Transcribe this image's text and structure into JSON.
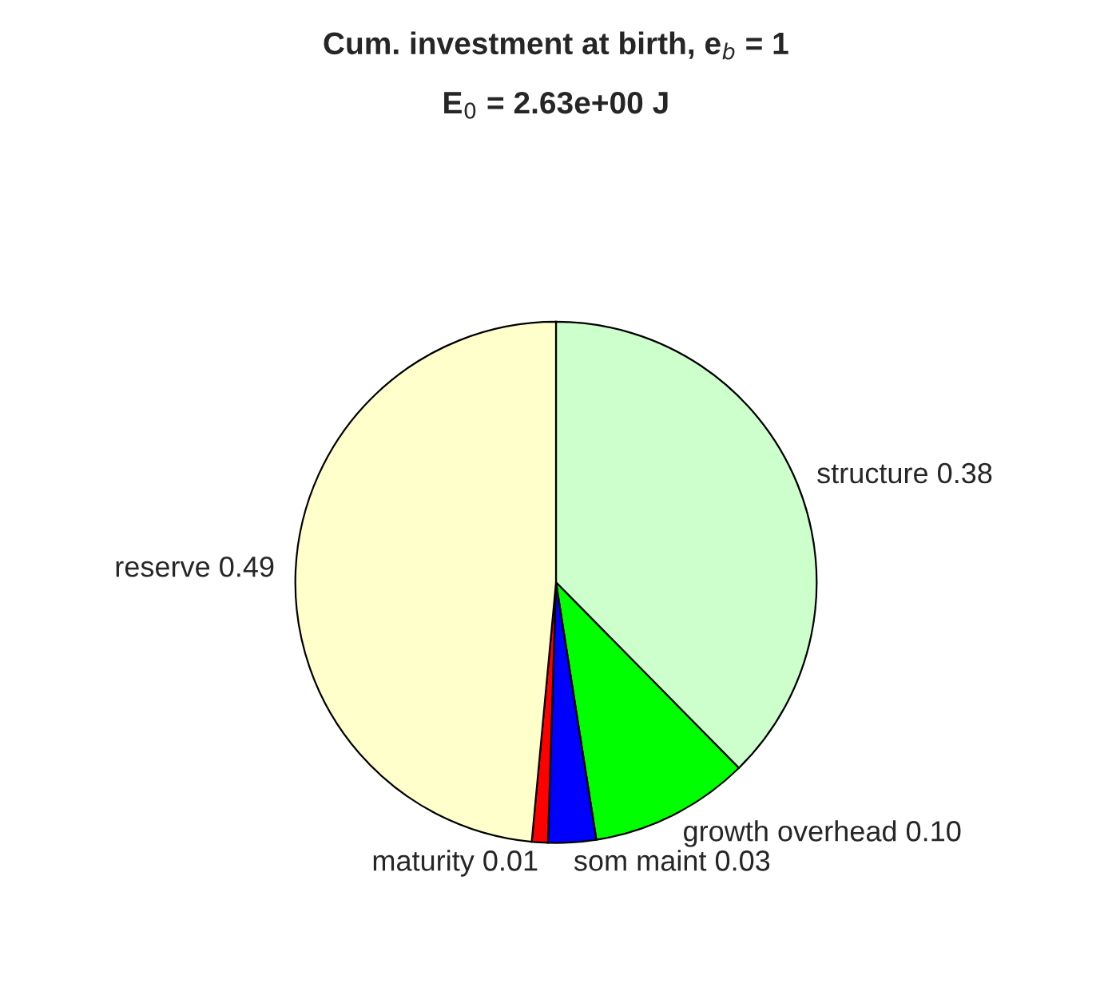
{
  "chart_data": {
    "type": "pie",
    "title": "Cum. investment at birth, e$_{b}$ = 1",
    "subtitle": "E$_{0}$ = 2.63e+00 J",
    "categories": [
      "structure 0.38",
      "growth overhead 0.10",
      "som maint 0.03",
      "maturity 0.01",
      "reserve 0.49"
    ],
    "values": [
      0.38,
      0.1,
      0.03,
      0.01,
      0.49
    ],
    "colors": [
      "#ccffcc",
      "#00ff00",
      "#0000ff",
      "#ff0000",
      "#ffffcc"
    ],
    "legend": false
  }
}
